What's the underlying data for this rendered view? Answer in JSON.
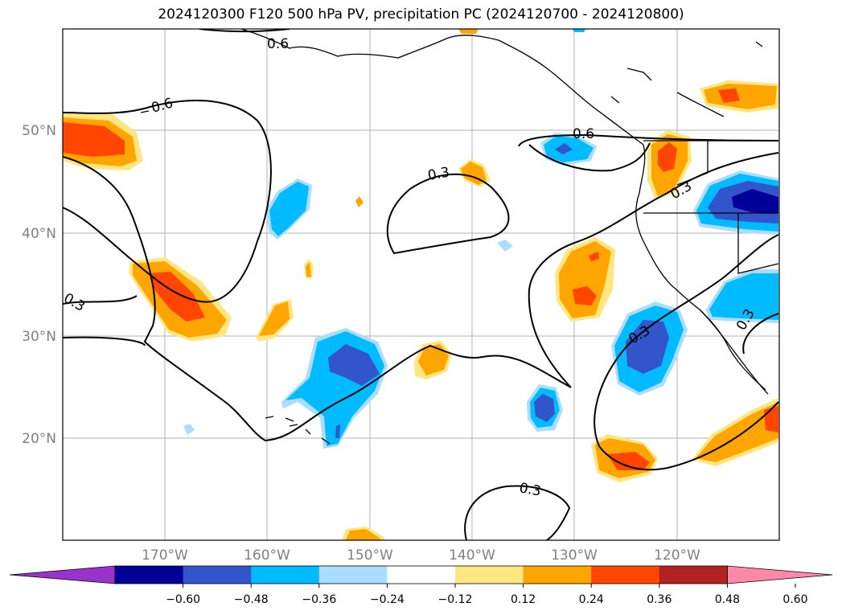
{
  "title": "2024120300 F120 500 hPa PV, precipitation PC (2024120700 - 2024120800)",
  "map": {
    "lon_labels": [
      "170°W",
      "160°W",
      "150°W",
      "140°W",
      "130°W",
      "120°W"
    ],
    "lat_labels": [
      "50°N",
      "40°N",
      "30°N",
      "20°N"
    ],
    "contour_labels": [
      "0.6",
      "0.6",
      "0.6",
      "0.3",
      "0.3",
      "0.3",
      "0.3",
      "0.3",
      "0.3"
    ]
  },
  "colorbar": {
    "ticks": [
      "−0.60",
      "−0.48",
      "−0.36",
      "−0.24",
      "−0.12",
      "0.12",
      "0.24",
      "0.36",
      "0.48",
      "0.60"
    ],
    "colors": [
      "#9933cc",
      "#000099",
      "#3355cc",
      "#00bbff",
      "#aaddff",
      "#ffffff",
      "#ffe680",
      "#ffa500",
      "#ff4500",
      "#b22222",
      "#ff88aa"
    ]
  }
}
